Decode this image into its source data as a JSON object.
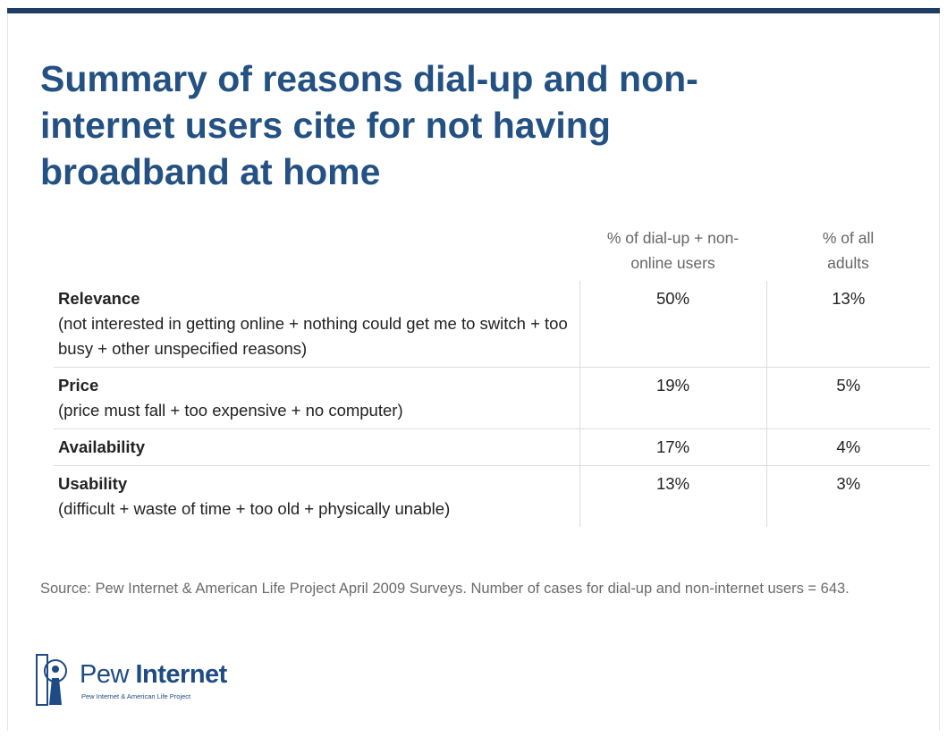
{
  "title": "Summary of reasons dial-up and non-internet users cite for not having broadband at home",
  "table": {
    "columns": [
      "% of dial-up + non-online users",
      "% of all adults"
    ],
    "rows": [
      {
        "label": "Relevance",
        "description": "(not interested in getting online + nothing could get me to switch + too busy + other unspecified reasons)",
        "values": [
          "50%",
          "13%"
        ]
      },
      {
        "label": "Price",
        "description": "(price must fall + too expensive + no computer)",
        "values": [
          "19%",
          "5%"
        ]
      },
      {
        "label": "Availability",
        "description": null,
        "values": [
          "17%",
          "4%"
        ]
      },
      {
        "label": "Usability",
        "description": "(difficult + waste of time + too old + physically unable)",
        "values": [
          "13%",
          "3%"
        ]
      }
    ]
  },
  "source": "Source: Pew Internet & American Life Project April 2009 Surveys. Number of cases for dial-up and non-internet users = 643.",
  "logo": {
    "name_light": "Pew",
    "name_bold": "Internet",
    "tagline": "Pew Internet & American Life Project"
  }
}
